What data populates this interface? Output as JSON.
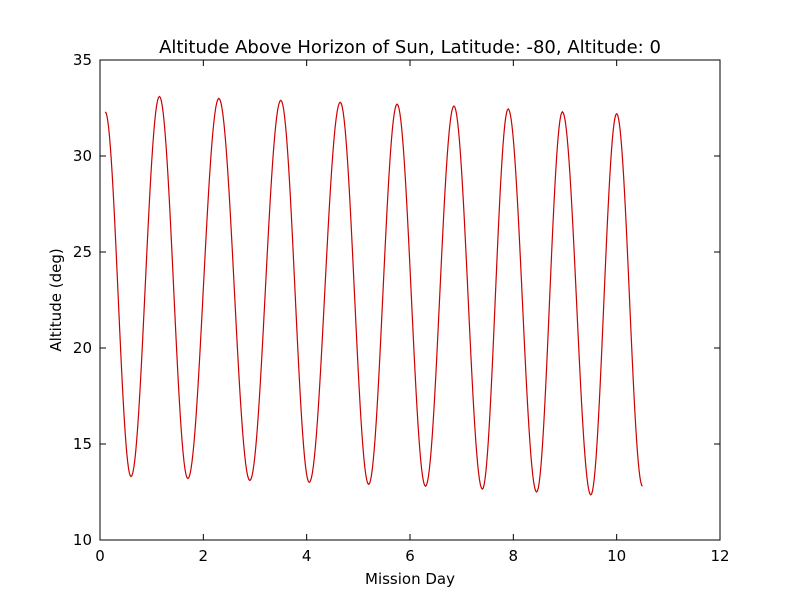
{
  "chart_data": {
    "type": "line",
    "title": "Altitude Above Horizon of Sun, Latitude: -80, Altitude: 0",
    "xlabel": "Mission Day",
    "ylabel": "Altitude (deg)",
    "xlim": [
      0,
      12
    ],
    "ylim": [
      10,
      35
    ],
    "xticks": [
      "0",
      "2",
      "4",
      "6",
      "8",
      "10",
      "12"
    ],
    "yticks": [
      "10",
      "15",
      "20",
      "25",
      "30",
      "35"
    ],
    "grid": false,
    "legend": "none",
    "series": [
      {
        "color": "#cc0000",
        "x_start": 0.1,
        "x_end": 10.5,
        "maxima": [
          {
            "x": 1.15,
            "y": 33.1
          },
          {
            "x": 2.3,
            "y": 33.0
          },
          {
            "x": 3.5,
            "y": 32.9
          },
          {
            "x": 4.65,
            "y": 32.8
          },
          {
            "x": 5.75,
            "y": 32.7
          },
          {
            "x": 6.85,
            "y": 32.6
          },
          {
            "x": 7.9,
            "y": 32.45
          },
          {
            "x": 8.95,
            "y": 32.3
          },
          {
            "x": 10.0,
            "y": 32.2
          }
        ],
        "minima": [
          {
            "x": 0.6,
            "y": 13.3
          },
          {
            "x": 1.7,
            "y": 13.2
          },
          {
            "x": 2.9,
            "y": 13.1
          },
          {
            "x": 4.05,
            "y": 13.0
          },
          {
            "x": 5.2,
            "y": 12.9
          },
          {
            "x": 6.3,
            "y": 12.8
          },
          {
            "x": 7.4,
            "y": 12.65
          },
          {
            "x": 8.45,
            "y": 12.5
          },
          {
            "x": 9.5,
            "y": 12.35
          }
        ],
        "start_y": 32.3,
        "end_y": 12.8
      }
    ]
  }
}
